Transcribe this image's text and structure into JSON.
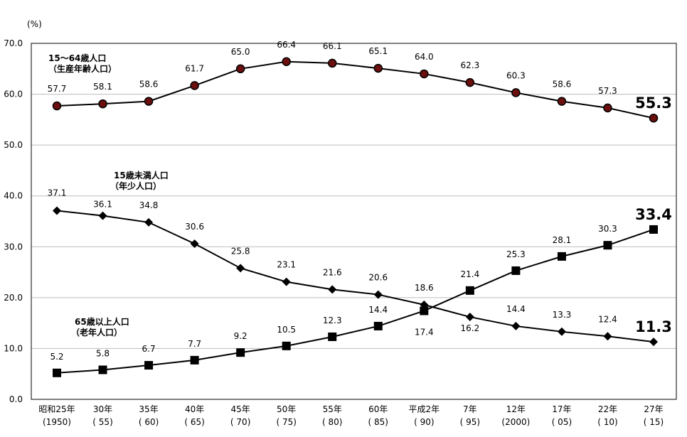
{
  "chart_data": {
    "type": "line",
    "unit": "(%)",
    "ylim": [
      0,
      70
    ],
    "yticks": [
      "0.0",
      "10.0",
      "20.0",
      "30.0",
      "40.0",
      "50.0",
      "60.0",
      "70.0"
    ],
    "grid": true,
    "categories": [
      {
        "line1": "昭和25年",
        "line2": "(1950)"
      },
      {
        "line1": "30年",
        "line2": "(  55)"
      },
      {
        "line1": "35年",
        "line2": "(  60)"
      },
      {
        "line1": "40年",
        "line2": "(  65)"
      },
      {
        "line1": "45年",
        "line2": "(  70)"
      },
      {
        "line1": "50年",
        "line2": "(  75)"
      },
      {
        "line1": "55年",
        "line2": "(  80)"
      },
      {
        "line1": "60年",
        "line2": "(  85)"
      },
      {
        "line1": "平成2年",
        "line2": "(  90)"
      },
      {
        "line1": "7年",
        "line2": "(  95)"
      },
      {
        "line1": "12年",
        "line2": "(2000)"
      },
      {
        "line1": "17年",
        "line2": "(  05)"
      },
      {
        "line1": "22年",
        "line2": "(  10)"
      },
      {
        "line1": "27年",
        "line2": "(  15)"
      }
    ],
    "series": [
      {
        "name_lines": [
          "15～64歳人口",
          "（生産年齢人口）"
        ],
        "marker": "circle",
        "marker_fill": "#6b0f0f",
        "values": [
          57.7,
          58.1,
          58.6,
          61.7,
          65.0,
          66.4,
          66.1,
          65.1,
          64.0,
          62.3,
          60.3,
          58.6,
          57.3,
          55.3
        ],
        "labels": [
          "57.7",
          "58.1",
          "58.6",
          "61.7",
          "65.0",
          "66.4",
          "66.1",
          "65.1",
          "64.0",
          "62.3",
          "60.3",
          "58.6",
          "57.3",
          "55.3"
        ]
      },
      {
        "name_lines": [
          "15歳未満人口",
          "（年少人口）"
        ],
        "marker": "diamond",
        "marker_fill": "#000000",
        "values": [
          37.1,
          36.1,
          34.8,
          30.6,
          25.8,
          23.1,
          21.6,
          20.6,
          18.6,
          16.2,
          14.4,
          13.3,
          12.4,
          11.3
        ],
        "labels": [
          "37.1",
          "36.1",
          "34.8",
          "30.6",
          "25.8",
          "23.1",
          "21.6",
          "20.6",
          "18.6",
          "16.2",
          "14.4",
          "13.3",
          "12.4",
          "11.3"
        ]
      },
      {
        "name_lines": [
          "65歳以上人口",
          "（老年人口）"
        ],
        "marker": "square",
        "marker_fill": "#000000",
        "values": [
          5.2,
          5.8,
          6.7,
          7.7,
          9.2,
          10.5,
          12.3,
          14.4,
          17.4,
          21.4,
          25.3,
          28.1,
          30.3,
          33.4
        ],
        "labels": [
          "5.2",
          "5.8",
          "6.7",
          "7.7",
          "9.2",
          "10.5",
          "12.3",
          "14.4",
          "17.4",
          "21.4",
          "25.3",
          "28.1",
          "30.3",
          "33.4"
        ]
      }
    ]
  }
}
